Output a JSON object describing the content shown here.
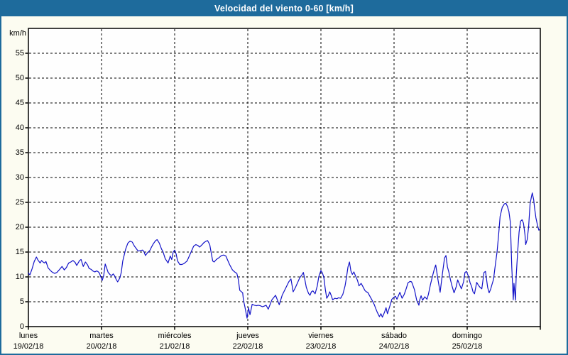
{
  "window": {
    "title": "Velocidad del viento 0-60 [km/h]"
  },
  "colors": {
    "titlebar_bg": "#1e6b9c",
    "titlebar_fg": "#ffffff",
    "window_border": "#1e6b9c",
    "page_bg": "#fcfcf1",
    "plot_bg": "#fefefe",
    "axis": "#000000",
    "grid": "#000000",
    "line": "#1212c8",
    "label": "#000000"
  },
  "chart_data": {
    "type": "line",
    "title": "Velocidad del viento 0-60 [km/h]",
    "ylabel_unit": "km/h",
    "ylim": [
      0,
      60
    ],
    "ytick_step": 5,
    "ytick_labels": [
      "0",
      "5",
      "10",
      "15",
      "20",
      "25",
      "30",
      "35",
      "40",
      "45",
      "50",
      "55"
    ],
    "grid": true,
    "x_days": [
      {
        "name": "lunes",
        "date": "19/02/18"
      },
      {
        "name": "martes",
        "date": "20/02/18"
      },
      {
        "name": "miércoles",
        "date": "21/02/18"
      },
      {
        "name": "jueves",
        "date": "22/02/18"
      },
      {
        "name": "viernes",
        "date": "23/02/18"
      },
      {
        "name": "sábado",
        "date": "24/02/18"
      },
      {
        "name": "domingo",
        "date": "25/02/18"
      }
    ],
    "xlim_days": [
      0,
      7
    ],
    "series": [
      {
        "name": "Velocidad del viento",
        "color": "#1212c8",
        "points": [
          [
            0.0,
            10.8
          ],
          [
            0.02,
            10.4
          ],
          [
            0.05,
            11.6
          ],
          [
            0.08,
            13.1
          ],
          [
            0.11,
            14.0
          ],
          [
            0.13,
            13.4
          ],
          [
            0.16,
            12.8
          ],
          [
            0.18,
            13.3
          ],
          [
            0.2,
            13.0
          ],
          [
            0.22,
            12.8
          ],
          [
            0.24,
            13.1
          ],
          [
            0.27,
            11.8
          ],
          [
            0.3,
            11.3
          ],
          [
            0.33,
            10.9
          ],
          [
            0.36,
            10.7
          ],
          [
            0.39,
            10.9
          ],
          [
            0.42,
            11.4
          ],
          [
            0.46,
            12.1
          ],
          [
            0.49,
            11.4
          ],
          [
            0.52,
            11.9
          ],
          [
            0.55,
            12.8
          ],
          [
            0.58,
            13.0
          ],
          [
            0.61,
            13.3
          ],
          [
            0.64,
            12.9
          ],
          [
            0.66,
            12.3
          ],
          [
            0.7,
            13.3
          ],
          [
            0.72,
            13.5
          ],
          [
            0.75,
            12.1
          ],
          [
            0.78,
            13.0
          ],
          [
            0.81,
            12.4
          ],
          [
            0.83,
            11.7
          ],
          [
            0.86,
            11.5
          ],
          [
            0.88,
            11.2
          ],
          [
            0.91,
            11.0
          ],
          [
            0.93,
            11.2
          ],
          [
            0.95,
            11.1
          ],
          [
            0.97,
            10.8
          ],
          [
            0.99,
            10.0
          ],
          [
            1.01,
            9.3
          ],
          [
            1.03,
            10.3
          ],
          [
            1.05,
            12.6
          ],
          [
            1.07,
            11.8
          ],
          [
            1.09,
            10.9
          ],
          [
            1.12,
            10.4
          ],
          [
            1.14,
            10.3
          ],
          [
            1.16,
            10.6
          ],
          [
            1.18,
            10.2
          ],
          [
            1.2,
            9.5
          ],
          [
            1.22,
            9.0
          ],
          [
            1.25,
            9.8
          ],
          [
            1.27,
            10.9
          ],
          [
            1.29,
            13.2
          ],
          [
            1.33,
            15.6
          ],
          [
            1.36,
            16.8
          ],
          [
            1.39,
            17.2
          ],
          [
            1.42,
            17.0
          ],
          [
            1.45,
            16.2
          ],
          [
            1.47,
            15.8
          ],
          [
            1.5,
            15.2
          ],
          [
            1.53,
            15.3
          ],
          [
            1.56,
            15.4
          ],
          [
            1.58,
            15.1
          ],
          [
            1.6,
            14.3
          ],
          [
            1.63,
            14.9
          ],
          [
            1.66,
            15.3
          ],
          [
            1.68,
            15.9
          ],
          [
            1.71,
            16.7
          ],
          [
            1.74,
            17.3
          ],
          [
            1.76,
            17.5
          ],
          [
            1.79,
            16.8
          ],
          [
            1.82,
            15.6
          ],
          [
            1.84,
            15.1
          ],
          [
            1.87,
            13.7
          ],
          [
            1.91,
            12.8
          ],
          [
            1.94,
            14.2
          ],
          [
            1.96,
            13.5
          ],
          [
            1.98,
            15.0
          ],
          [
            2.0,
            15.4
          ],
          [
            2.02,
            14.6
          ],
          [
            2.04,
            13.2
          ],
          [
            2.07,
            12.5
          ],
          [
            2.1,
            12.5
          ],
          [
            2.13,
            12.7
          ],
          [
            2.17,
            13.2
          ],
          [
            2.2,
            14.2
          ],
          [
            2.23,
            15.2
          ],
          [
            2.26,
            16.2
          ],
          [
            2.29,
            16.5
          ],
          [
            2.32,
            16.3
          ],
          [
            2.34,
            16.0
          ],
          [
            2.37,
            16.4
          ],
          [
            2.4,
            16.9
          ],
          [
            2.43,
            17.2
          ],
          [
            2.45,
            17.3
          ],
          [
            2.48,
            16.5
          ],
          [
            2.5,
            14.8
          ],
          [
            2.52,
            13.2
          ],
          [
            2.54,
            13.0
          ],
          [
            2.57,
            13.5
          ],
          [
            2.6,
            13.8
          ],
          [
            2.64,
            14.3
          ],
          [
            2.67,
            14.4
          ],
          [
            2.7,
            14.2
          ],
          [
            2.75,
            12.5
          ],
          [
            2.79,
            11.4
          ],
          [
            2.82,
            11.0
          ],
          [
            2.85,
            10.7
          ],
          [
            2.87,
            9.5
          ],
          [
            2.89,
            7.3
          ],
          [
            2.93,
            6.8
          ],
          [
            2.94,
            5.4
          ],
          [
            2.96,
            4.0
          ],
          [
            2.99,
            1.7
          ],
          [
            3.01,
            3.8
          ],
          [
            3.03,
            2.4
          ],
          [
            3.06,
            4.5
          ],
          [
            3.09,
            4.3
          ],
          [
            3.12,
            4.2
          ],
          [
            3.14,
            4.3
          ],
          [
            3.17,
            4.2
          ],
          [
            3.2,
            4.0
          ],
          [
            3.22,
            4.1
          ],
          [
            3.25,
            4.3
          ],
          [
            3.28,
            3.5
          ],
          [
            3.33,
            5.4
          ],
          [
            3.38,
            6.3
          ],
          [
            3.43,
            4.4
          ],
          [
            3.47,
            6.3
          ],
          [
            3.52,
            7.8
          ],
          [
            3.56,
            9.0
          ],
          [
            3.59,
            9.6
          ],
          [
            3.62,
            7.0
          ],
          [
            3.65,
            7.8
          ],
          [
            3.68,
            8.8
          ],
          [
            3.71,
            9.8
          ],
          [
            3.74,
            10.4
          ],
          [
            3.76,
            10.9
          ],
          [
            3.78,
            9.5
          ],
          [
            3.8,
            7.9
          ],
          [
            3.83,
            6.7
          ],
          [
            3.85,
            6.3
          ],
          [
            3.87,
            7.0
          ],
          [
            3.89,
            7.2
          ],
          [
            3.92,
            6.6
          ],
          [
            3.95,
            8.2
          ],
          [
            3.97,
            10.0
          ],
          [
            4.0,
            11.3
          ],
          [
            4.02,
            10.8
          ],
          [
            4.04,
            9.9
          ],
          [
            4.06,
            7.5
          ],
          [
            4.08,
            5.7
          ],
          [
            4.1,
            6.2
          ],
          [
            4.12,
            7.0
          ],
          [
            4.14,
            6.3
          ],
          [
            4.16,
            5.4
          ],
          [
            4.19,
            5.7
          ],
          [
            4.22,
            5.6
          ],
          [
            4.24,
            5.8
          ],
          [
            4.27,
            5.7
          ],
          [
            4.3,
            6.5
          ],
          [
            4.33,
            8.2
          ],
          [
            4.35,
            9.9
          ],
          [
            4.37,
            12.0
          ],
          [
            4.39,
            13.0
          ],
          [
            4.41,
            11.2
          ],
          [
            4.43,
            10.5
          ],
          [
            4.45,
            11.0
          ],
          [
            4.47,
            10.3
          ],
          [
            4.5,
            9.3
          ],
          [
            4.52,
            8.2
          ],
          [
            4.55,
            8.7
          ],
          [
            4.58,
            7.9
          ],
          [
            4.6,
            7.3
          ],
          [
            4.62,
            7.0
          ],
          [
            4.64,
            6.9
          ],
          [
            4.67,
            6.1
          ],
          [
            4.7,
            5.3
          ],
          [
            4.73,
            4.4
          ],
          [
            4.75,
            3.6
          ],
          [
            4.77,
            2.9
          ],
          [
            4.8,
            2.0
          ],
          [
            4.82,
            2.6
          ],
          [
            4.84,
            1.9
          ],
          [
            4.87,
            2.9
          ],
          [
            4.89,
            3.8
          ],
          [
            4.91,
            2.6
          ],
          [
            4.94,
            4.0
          ],
          [
            4.97,
            5.5
          ],
          [
            4.99,
            5.8
          ],
          [
            5.02,
            6.1
          ],
          [
            5.04,
            5.5
          ],
          [
            5.08,
            6.9
          ],
          [
            5.11,
            5.7
          ],
          [
            5.14,
            6.5
          ],
          [
            5.17,
            7.8
          ],
          [
            5.19,
            8.8
          ],
          [
            5.22,
            9.1
          ],
          [
            5.24,
            9.0
          ],
          [
            5.26,
            8.2
          ],
          [
            5.28,
            7.4
          ],
          [
            5.31,
            5.3
          ],
          [
            5.34,
            4.3
          ],
          [
            5.35,
            5.3
          ],
          [
            5.37,
            6.2
          ],
          [
            5.39,
            5.3
          ],
          [
            5.42,
            6.0
          ],
          [
            5.45,
            5.5
          ],
          [
            5.47,
            6.5
          ],
          [
            5.5,
            8.6
          ],
          [
            5.53,
            10.4
          ],
          [
            5.55,
            11.5
          ],
          [
            5.57,
            12.4
          ],
          [
            5.6,
            9.5
          ],
          [
            5.63,
            6.9
          ],
          [
            5.66,
            10.5
          ],
          [
            5.69,
            13.8
          ],
          [
            5.71,
            14.3
          ],
          [
            5.73,
            12.0
          ],
          [
            5.75,
            10.9
          ],
          [
            5.77,
            9.5
          ],
          [
            5.79,
            8.3
          ],
          [
            5.82,
            6.8
          ],
          [
            5.85,
            8.0
          ],
          [
            5.87,
            9.4
          ],
          [
            5.9,
            8.3
          ],
          [
            5.92,
            7.6
          ],
          [
            5.95,
            9.0
          ],
          [
            5.97,
            10.9
          ],
          [
            5.99,
            11.1
          ],
          [
            6.02,
            10.0
          ],
          [
            6.04,
            8.8
          ],
          [
            6.06,
            8.1
          ],
          [
            6.08,
            7.0
          ],
          [
            6.1,
            6.6
          ],
          [
            6.13,
            8.9
          ],
          [
            6.15,
            8.4
          ],
          [
            6.17,
            8.0
          ],
          [
            6.2,
            7.6
          ],
          [
            6.23,
            10.9
          ],
          [
            6.25,
            11.1
          ],
          [
            6.28,
            7.9
          ],
          [
            6.3,
            6.8
          ],
          [
            6.32,
            7.5
          ],
          [
            6.34,
            8.5
          ],
          [
            6.36,
            9.5
          ],
          [
            6.38,
            11.8
          ],
          [
            6.41,
            15.2
          ],
          [
            6.43,
            18.5
          ],
          [
            6.45,
            22.2
          ],
          [
            6.48,
            24.0
          ],
          [
            6.51,
            24.7
          ],
          [
            6.53,
            24.8
          ],
          [
            6.55,
            24.2
          ],
          [
            6.57,
            23.2
          ],
          [
            6.59,
            21.0
          ],
          [
            6.61,
            12.0
          ],
          [
            6.63,
            5.4
          ],
          [
            6.64,
            8.7
          ],
          [
            6.66,
            5.3
          ],
          [
            6.67,
            10.0
          ],
          [
            6.69,
            15.1
          ],
          [
            6.71,
            19.0
          ],
          [
            6.73,
            21.2
          ],
          [
            6.75,
            21.5
          ],
          [
            6.77,
            20.8
          ],
          [
            6.79,
            18.5
          ],
          [
            6.8,
            16.5
          ],
          [
            6.82,
            17.5
          ],
          [
            6.84,
            20.0
          ],
          [
            6.86,
            24.7
          ],
          [
            6.88,
            26.2
          ],
          [
            6.89,
            26.9
          ],
          [
            6.91,
            25.5
          ],
          [
            6.92,
            24.0
          ],
          [
            6.94,
            21.9
          ],
          [
            6.96,
            20.5
          ],
          [
            6.98,
            19.4
          ],
          [
            6.99,
            19.5
          ]
        ]
      }
    ]
  }
}
